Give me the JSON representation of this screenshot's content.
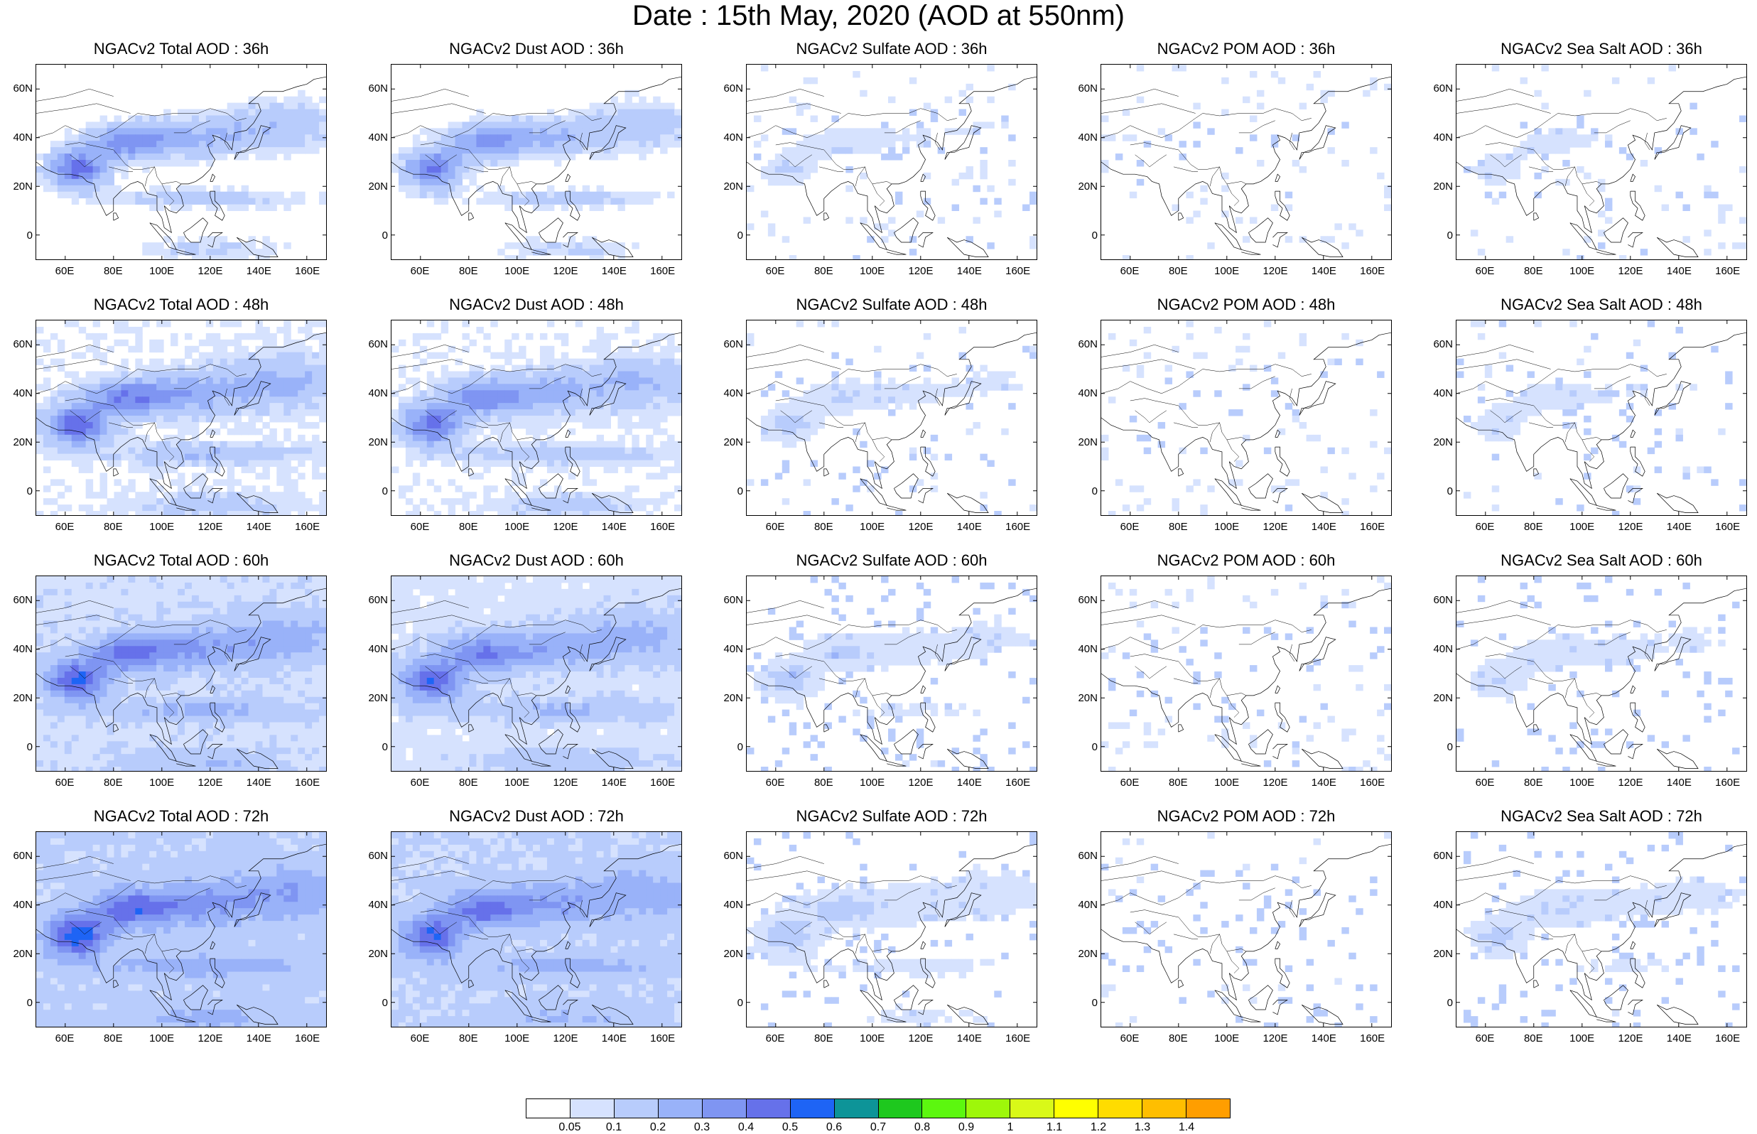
{
  "title": "Date : 15th May, 2020 (AOD at 550nm)",
  "axes": {
    "lat_ticks": [
      "60N",
      "40N",
      "20N",
      "0"
    ],
    "lat_values": [
      60,
      40,
      20,
      0
    ],
    "lon_ticks": [
      "60E",
      "80E",
      "100E",
      "120E",
      "140E",
      "160E"
    ],
    "lon_values": [
      60,
      80,
      100,
      120,
      140,
      160
    ],
    "lon_range": [
      48,
      168
    ],
    "lat_range": [
      -10,
      70
    ]
  },
  "panel_titles": [
    [
      "NGACv2 Total AOD : 36h",
      "NGACv2 Dust AOD : 36h",
      "NGACv2 Sulfate AOD : 36h",
      "NGACv2 POM AOD : 36h",
      "NGACv2 Sea Salt AOD : 36h"
    ],
    [
      "NGACv2 Total AOD : 48h",
      "NGACv2 Dust AOD : 48h",
      "NGACv2 Sulfate AOD : 48h",
      "NGACv2 POM AOD : 48h",
      "NGACv2 Sea Salt AOD : 48h"
    ],
    [
      "NGACv2 Total AOD : 60h",
      "NGACv2 Dust AOD : 60h",
      "NGACv2 Sulfate AOD : 60h",
      "NGACv2 POM AOD : 60h",
      "NGACv2 Sea Salt AOD : 60h"
    ],
    [
      "NGACv2 Total AOD : 72h",
      "NGACv2 Dust AOD : 72h",
      "NGACv2 Sulfate AOD : 72h",
      "NGACv2 POM AOD : 72h",
      "NGACv2 Sea Salt  AOD : 72h"
    ]
  ],
  "species_intensity": [
    1.0,
    0.9,
    0.25,
    0.08,
    0.2
  ],
  "colorbar": {
    "colors": [
      "#ffffff",
      "#d6e2fe",
      "#b8ccfc",
      "#99b2f9",
      "#7f95f2",
      "#6671ea",
      "#1e64f5",
      "#0d9498",
      "#1ec81e",
      "#5cf70f",
      "#9ef70a",
      "#d9f918",
      "#ffff00",
      "#ffdc00",
      "#ffbe00",
      "#ff9e00",
      "#ff7000",
      "#ff2c0b"
    ],
    "labels": [
      "0.05",
      "0.1",
      "0.2",
      "0.3",
      "0.4",
      "0.5",
      "0.6",
      "0.7",
      "0.8",
      "0.9",
      "1",
      "1.1",
      "1.2",
      "1.3",
      "1.4"
    ]
  }
}
